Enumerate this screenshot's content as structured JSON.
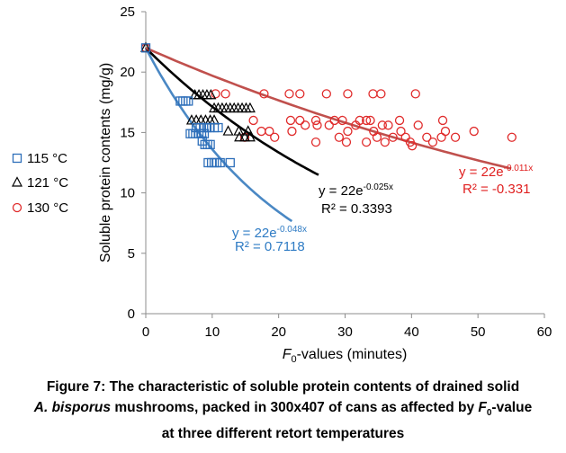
{
  "chart_data": {
    "type": "scatter",
    "xlabel_italic": "F",
    "xlabel_sub": "0",
    "xlabel_rest": "-values (minutes)",
    "ylabel": "Soluble protein contents (mg/g)",
    "xlim": [
      0,
      60
    ],
    "ylim": [
      0,
      25
    ],
    "xticks": [
      0,
      10,
      20,
      30,
      40,
      50,
      60
    ],
    "yticks": [
      0,
      5,
      10,
      15,
      20,
      25
    ],
    "grid": false,
    "legend_position": "left",
    "series": [
      {
        "name": "115 °C",
        "marker": "square",
        "color": "#2e6fba",
        "trend_color": "#4a88c4",
        "trend_equation_base": "y = 22e",
        "trend_equation_exp": "-0.048x",
        "trend_r2": "R² = 0.7118",
        "trend_a": 22,
        "trend_b": -0.048,
        "trend_xmax": 22,
        "points": [
          [
            0,
            22
          ],
          [
            5.2,
            17.6
          ],
          [
            5.6,
            17.6
          ],
          [
            6,
            17.6
          ],
          [
            6.4,
            17.6
          ],
          [
            6.7,
            14.9
          ],
          [
            7.1,
            14.9
          ],
          [
            7.5,
            14.9
          ],
          [
            8,
            14.9
          ],
          [
            8.4,
            14.9
          ],
          [
            8.8,
            14.9
          ],
          [
            7.6,
            15.4
          ],
          [
            8.2,
            15.4
          ],
          [
            8.7,
            15.4
          ],
          [
            9.2,
            15.4
          ],
          [
            9.6,
            15.4
          ],
          [
            10.3,
            15.4
          ],
          [
            10.9,
            15.4
          ],
          [
            8.5,
            14.3
          ],
          [
            8.9,
            14
          ],
          [
            9.3,
            14
          ],
          [
            9.7,
            14
          ],
          [
            9.4,
            12.5
          ],
          [
            9.9,
            12.5
          ],
          [
            10.3,
            12.5
          ],
          [
            10.7,
            12.5
          ],
          [
            11.2,
            12.5
          ],
          [
            12.7,
            12.5
          ]
        ]
      },
      {
        "name": "121 °C",
        "marker": "triangle",
        "color": "#000000",
        "trend_color": "#000000",
        "trend_equation_base": "y = 22e",
        "trend_equation_exp": "-0.025x",
        "trend_r2": "R² = 0.3393",
        "trend_a": 22,
        "trend_b": -0.025,
        "trend_xmax": 26,
        "points": [
          [
            0,
            22
          ],
          [
            6.9,
            16
          ],
          [
            7.6,
            16
          ],
          [
            8.3,
            16
          ],
          [
            9,
            16
          ],
          [
            9.7,
            16
          ],
          [
            10.3,
            16
          ],
          [
            7.4,
            18.1
          ],
          [
            8,
            18.1
          ],
          [
            8.6,
            18.1
          ],
          [
            9.2,
            18.1
          ],
          [
            9.8,
            18.1
          ],
          [
            10.3,
            17
          ],
          [
            10.9,
            17
          ],
          [
            11.5,
            17
          ],
          [
            12.1,
            17
          ],
          [
            12.7,
            17
          ],
          [
            13.3,
            17
          ],
          [
            13.9,
            17
          ],
          [
            14.5,
            17
          ],
          [
            15.1,
            17
          ],
          [
            15.7,
            17
          ],
          [
            12.4,
            15.1
          ],
          [
            14,
            15.1
          ],
          [
            15.4,
            15.1
          ],
          [
            14.1,
            14.6
          ],
          [
            14.9,
            14.6
          ],
          [
            15.7,
            14.6
          ]
        ]
      },
      {
        "name": "130 °C",
        "marker": "circle",
        "color": "#e02b2b",
        "trend_color": "#c0504d",
        "trend_equation_base": "y = 22e",
        "trend_equation_exp": "-0.011x",
        "trend_r2": "R² = -0.331",
        "trend_a": 22,
        "trend_b": -0.011,
        "trend_xmax": 55,
        "points": [
          [
            0,
            22
          ],
          [
            10.5,
            18.2
          ],
          [
            12,
            18.2
          ],
          [
            17.8,
            18.2
          ],
          [
            21.6,
            18.2
          ],
          [
            23.2,
            18.2
          ],
          [
            27.2,
            18.2
          ],
          [
            30.4,
            18.2
          ],
          [
            34.2,
            18.2
          ],
          [
            35.4,
            18.2
          ],
          [
            40.6,
            18.2
          ],
          [
            16.2,
            16
          ],
          [
            21.8,
            16
          ],
          [
            23.2,
            16
          ],
          [
            25.6,
            16
          ],
          [
            28.4,
            16
          ],
          [
            29.6,
            16
          ],
          [
            32.2,
            16
          ],
          [
            33.8,
            16
          ],
          [
            38.2,
            16
          ],
          [
            44.7,
            16
          ],
          [
            14.9,
            14.6
          ],
          [
            17.4,
            15.1
          ],
          [
            18.6,
            15.1
          ],
          [
            19.4,
            14.6
          ],
          [
            22,
            15.1
          ],
          [
            24,
            15.6
          ],
          [
            25.8,
            15.6
          ],
          [
            27.6,
            15.6
          ],
          [
            29.1,
            14.6
          ],
          [
            30.4,
            15.1
          ],
          [
            31.6,
            15.6
          ],
          [
            33.2,
            16
          ],
          [
            34.3,
            15.1
          ],
          [
            34.8,
            14.6
          ],
          [
            35.6,
            15.6
          ],
          [
            36.5,
            15.6
          ],
          [
            37.2,
            14.6
          ],
          [
            38.4,
            15.1
          ],
          [
            39.1,
            14.6
          ],
          [
            39.8,
            14.2
          ],
          [
            41,
            15.6
          ],
          [
            42.3,
            14.6
          ],
          [
            43.2,
            14.2
          ],
          [
            44.5,
            14.6
          ],
          [
            45.1,
            15.1
          ],
          [
            46.6,
            14.6
          ],
          [
            49.4,
            15.1
          ],
          [
            55.1,
            14.6
          ],
          [
            25.6,
            14.2
          ],
          [
            30.2,
            14.2
          ],
          [
            33.2,
            14.2
          ],
          [
            36,
            14.2
          ],
          [
            40.1,
            13.9
          ]
        ]
      }
    ]
  },
  "caption": {
    "line1": "Figure 7: The characteristic of soluble protein contents of drained solid",
    "line2_italic": "A. bisporus",
    "line2_rest_a": " mushrooms, packed in 300x407 of cans as affected by ",
    "line2_f": "F",
    "line2_sub": "0",
    "line2_rest_b": "-value",
    "line3": "at three different retort temperatures"
  }
}
